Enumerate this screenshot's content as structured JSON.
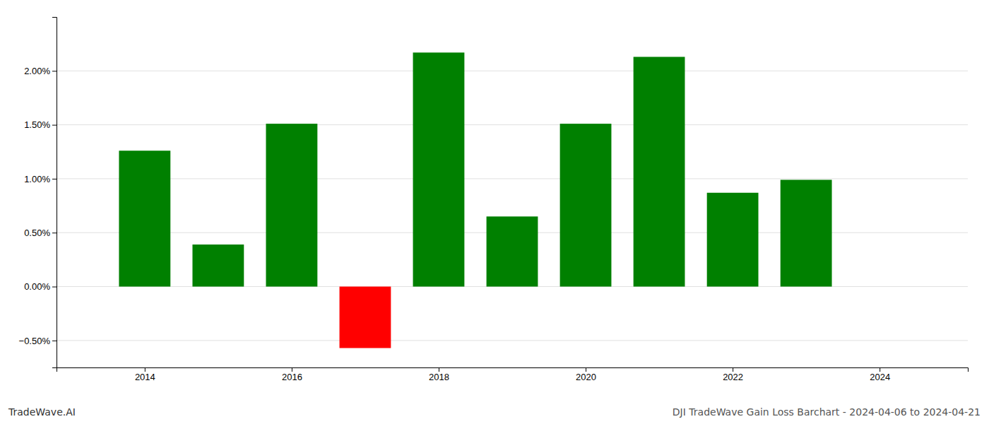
{
  "chart_data": {
    "type": "bar",
    "title": "DJI TradeWave Gain Loss Barchart - 2024-04-06 to 2024-04-21",
    "annotations": [
      "TradeWave.AI"
    ],
    "x": [
      2014,
      2015,
      2016,
      2017,
      2018,
      2019,
      2020,
      2021,
      2022,
      2023
    ],
    "values": [
      1.26,
      0.39,
      1.51,
      -0.57,
      2.17,
      0.65,
      1.51,
      2.13,
      0.87,
      0.99
    ],
    "colors": [
      "#008000",
      "#008000",
      "#008000",
      "#ff0000",
      "#008000",
      "#008000",
      "#008000",
      "#008000",
      "#008000",
      "#008000"
    ],
    "xlim": [
      2012.8,
      2025.2
    ],
    "xticks": [
      2014,
      2016,
      2018,
      2020,
      2022,
      2024
    ],
    "ylim": [
      -0.75,
      2.5
    ],
    "yticks": [
      {
        "value": -0.5,
        "label": "−0.50%"
      },
      {
        "value": 0.0,
        "label": "0.00%"
      },
      {
        "value": 0.5,
        "label": "0.50%"
      },
      {
        "value": 1.0,
        "label": "1.00%"
      },
      {
        "value": 1.5,
        "label": "1.50%"
      },
      {
        "value": 2.0,
        "label": "2.00%"
      }
    ],
    "grid": true
  }
}
